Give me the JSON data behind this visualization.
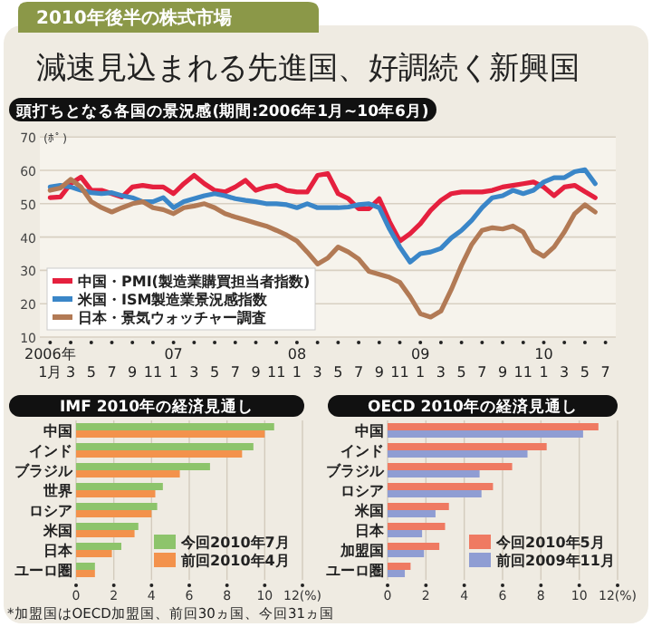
{
  "chart_data": [
    {
      "type": "other",
      "subtitle": "2010年後半の株式市場",
      "title": "減速見込まれる先進国、好調続く新興国"
    },
    {
      "type": "line",
      "title": "頭打ちとなる各国の景況感(期間:2006年1月~10年6月)",
      "ylabel": "(ﾎﾟ)",
      "x": [
        "2006-01",
        "2006-02",
        "2006-03",
        "2006-04",
        "2006-05",
        "2006-06",
        "2006-07",
        "2006-08",
        "2006-09",
        "2006-10",
        "2006-11",
        "2006-12",
        "2007-01",
        "2007-02",
        "2007-03",
        "2007-04",
        "2007-05",
        "2007-06",
        "2007-07",
        "2007-08",
        "2007-09",
        "2007-10",
        "2007-11",
        "2007-12",
        "2008-01",
        "2008-02",
        "2008-03",
        "2008-04",
        "2008-05",
        "2008-06",
        "2008-07",
        "2008-08",
        "2008-09",
        "2008-10",
        "2008-11",
        "2008-12",
        "2009-01",
        "2009-02",
        "2009-03",
        "2009-04",
        "2009-05",
        "2009-06",
        "2009-07",
        "2009-08",
        "2009-09",
        "2009-10",
        "2009-11",
        "2009-12",
        "2010-01",
        "2010-02",
        "2010-03",
        "2010-04",
        "2010-05",
        "2010-06"
      ],
      "xlim": [
        "2005-12",
        "2010-08"
      ],
      "xticks": [
        {
          "value": "2006-01",
          "label": "2006年\n1月"
        },
        {
          "value": "2006-03",
          "label": "3"
        },
        {
          "value": "2006-05",
          "label": "5"
        },
        {
          "value": "2006-07",
          "label": "7"
        },
        {
          "value": "2006-09",
          "label": "9"
        },
        {
          "value": "2006-11",
          "label": "11"
        },
        {
          "value": "2007-01",
          "label": "07\n1"
        },
        {
          "value": "2007-03",
          "label": "3"
        },
        {
          "value": "2007-05",
          "label": "5"
        },
        {
          "value": "2007-07",
          "label": "7"
        },
        {
          "value": "2007-09",
          "label": "9"
        },
        {
          "value": "2007-11",
          "label": "11"
        },
        {
          "value": "2008-01",
          "label": "08\n1"
        },
        {
          "value": "2008-03",
          "label": "3"
        },
        {
          "value": "2008-05",
          "label": "5"
        },
        {
          "value": "2008-07",
          "label": "7"
        },
        {
          "value": "2008-09",
          "label": "9"
        },
        {
          "value": "2008-11",
          "label": "11"
        },
        {
          "value": "2009-01",
          "label": "09\n1"
        },
        {
          "value": "2009-03",
          "label": "3"
        },
        {
          "value": "2009-05",
          "label": "5"
        },
        {
          "value": "2009-07",
          "label": "7"
        },
        {
          "value": "2009-09",
          "label": "9"
        },
        {
          "value": "2009-11",
          "label": "11"
        },
        {
          "value": "2010-01",
          "label": "10\n1"
        },
        {
          "value": "2010-03",
          "label": "3"
        },
        {
          "value": "2010-05",
          "label": "5"
        },
        {
          "value": "2010-07",
          "label": "7"
        }
      ],
      "ylim": [
        10,
        70
      ],
      "yticks": [
        10,
        20,
        30,
        40,
        50,
        60,
        70
      ],
      "grid": "y",
      "legend": "bottom left",
      "series": [
        {
          "name": "中国・PMI(製造業購買担当者指数)",
          "color": "#e5203e",
          "values": [
            51.8,
            52,
            56,
            58,
            54,
            54,
            53,
            52,
            55,
            55.5,
            55,
            55,
            53,
            56,
            58.5,
            56,
            54,
            53.5,
            55,
            57,
            54,
            55,
            55.5,
            54,
            53.5,
            53.5,
            58.5,
            59,
            53,
            51.5,
            48.5,
            48.5,
            51.5,
            44.6,
            38.8,
            41,
            44,
            48,
            51,
            53,
            53.5,
            53.5,
            53.5,
            54,
            55,
            55.5,
            56,
            56.5,
            55,
            52.4,
            55,
            55.5,
            53.6,
            51.8
          ]
        },
        {
          "name": "米国・ISM製造業景況感指数",
          "color": "#3a86c8",
          "values": [
            55,
            55.5,
            55,
            54,
            53.3,
            53,
            53.3,
            52.4,
            51.8,
            50.6,
            50.6,
            51.8,
            48.8,
            50.6,
            51.5,
            52.4,
            53,
            52.4,
            51.5,
            51,
            50.6,
            50,
            50,
            49.7,
            48.8,
            50,
            48.8,
            48.8,
            48.8,
            49,
            49.7,
            50,
            48.8,
            42.4,
            37,
            32.5,
            35,
            35.5,
            36.6,
            39.7,
            42,
            45,
            48.8,
            51.8,
            52.4,
            54,
            53,
            54,
            56.5,
            57.8,
            57.8,
            59.6,
            60.2,
            56
          ]
        },
        {
          "name": "日本・景気ウォッチャー調査",
          "color": "#b27a55",
          "values": [
            54,
            54.7,
            57.3,
            55,
            50.6,
            48.8,
            47.5,
            48.8,
            50,
            50.6,
            48.8,
            48.2,
            47,
            48.8,
            49.3,
            50,
            48.8,
            47,
            46,
            45.1,
            44.2,
            43.3,
            42,
            40.6,
            38.8,
            35.5,
            31.9,
            33.7,
            37,
            35.5,
            33.4,
            29.7,
            28.8,
            27.9,
            26.4,
            22.1,
            17,
            16,
            17.8,
            24.2,
            31.5,
            37.8,
            42,
            42.8,
            42.4,
            43.3,
            41.5,
            36,
            34.2,
            37,
            41.5,
            47,
            49.7,
            47.5
          ]
        }
      ]
    },
    {
      "type": "bar",
      "orientation": "horizontal",
      "title": "IMF 2010年の経済見通し",
      "categories": [
        "中国",
        "インド",
        "ブラジル",
        "世界",
        "ロシア",
        "米国",
        "日本",
        "ユーロ圏"
      ],
      "xlim": [
        0,
        12
      ],
      "xticks": [
        0,
        2,
        4,
        6,
        8,
        10,
        {
          "value": 12,
          "label": "12(%)"
        }
      ],
      "grid": "x",
      "legend": "bottom right",
      "series": [
        {
          "name": "今回2010年7月",
          "color": "#8dc46b",
          "values": [
            10.5,
            9.4,
            7.1,
            4.6,
            4.3,
            3.3,
            2.4,
            1.0
          ]
        },
        {
          "name": "前回2010年4月",
          "color": "#f3924c",
          "values": [
            10.0,
            8.8,
            5.5,
            4.2,
            4.0,
            3.1,
            1.9,
            1.0
          ]
        }
      ]
    },
    {
      "type": "bar",
      "orientation": "horizontal",
      "title": "OECD 2010年の経済見通し",
      "categories": [
        "中国",
        "インド",
        "ブラジル",
        "ロシア",
        "米国",
        "日本",
        "加盟国",
        "ユーロ圏"
      ],
      "xlim": [
        0,
        12
      ],
      "xticks": [
        0,
        2,
        4,
        6,
        8,
        10,
        {
          "value": 12,
          "label": "12(%)"
        }
      ],
      "grid": "x",
      "legend": "bottom right",
      "annotations": [
        "*加盟国はOECD加盟国、前回30ヵ国、今回31ヵ国"
      ],
      "series": [
        {
          "name": "今回2010年5月",
          "color": "#ef7a62",
          "values": [
            11.0,
            8.3,
            6.5,
            5.5,
            3.2,
            3.0,
            2.7,
            1.2
          ]
        },
        {
          "name": "前回2009年11月",
          "color": "#8f9dd3",
          "values": [
            10.2,
            7.3,
            4.8,
            4.9,
            2.5,
            1.8,
            1.9,
            0.9
          ]
        }
      ]
    }
  ]
}
